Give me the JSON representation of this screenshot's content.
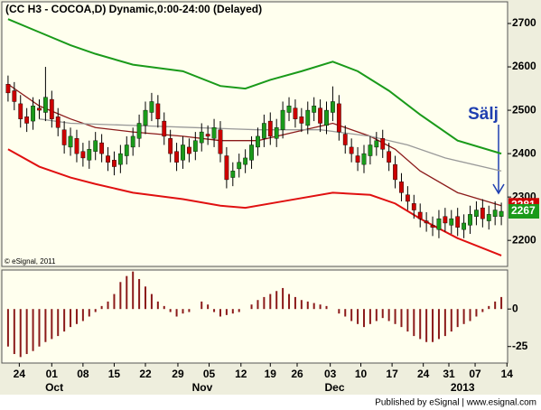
{
  "chart_data": [
    {
      "type": "candlestick",
      "title": "(CC H3 - COCOA,D) Dynamic,0:00-24:00 (Delayed)",
      "copyright": "© eSignal, 2011",
      "annotation": "Sälj",
      "xlim": [
        -1,
        80
      ],
      "ylim": [
        2140,
        2750
      ],
      "yticks": [
        2200,
        2300,
        2400,
        2500,
        2600,
        2700
      ],
      "up_color": "#1a9a1a",
      "down_color": "#cc0000",
      "open": [
        2560,
        2545,
        2515,
        2485,
        2475,
        2505,
        2495,
        2525,
        2485,
        2455,
        2415,
        2435,
        2405,
        2385,
        2405,
        2425,
        2395,
        2385,
        2375,
        2395,
        2415,
        2435,
        2465,
        2495,
        2515,
        2475,
        2435,
        2405,
        2385,
        2415,
        2405,
        2425,
        2445,
        2435,
        2455,
        2395,
        2345,
        2365,
        2375,
        2385,
        2415,
        2435,
        2475,
        2435,
        2455,
        2495,
        2505,
        2485,
        2465,
        2495,
        2505,
        2465,
        2495,
        2515,
        2445,
        2415,
        2395,
        2375,
        2395,
        2415,
        2435,
        2405,
        2375,
        2335,
        2305,
        2285,
        2265,
        2245,
        2235,
        2225,
        2255,
        2235,
        2255,
        2225,
        2235,
        2255,
        2275,
        2245,
        2255,
        2255
      ],
      "high": [
        2580,
        2565,
        2535,
        2505,
        2530,
        2525,
        2600,
        2545,
        2505,
        2475,
        2460,
        2455,
        2425,
        2430,
        2450,
        2445,
        2415,
        2405,
        2420,
        2440,
        2460,
        2490,
        2520,
        2540,
        2535,
        2495,
        2455,
        2425,
        2440,
        2435,
        2450,
        2470,
        2465,
        2480,
        2475,
        2415,
        2380,
        2400,
        2410,
        2440,
        2460,
        2490,
        2495,
        2480,
        2520,
        2530,
        2525,
        2505,
        2520,
        2530,
        2525,
        2520,
        2555,
        2535,
        2465,
        2435,
        2415,
        2420,
        2440,
        2450,
        2455,
        2425,
        2395,
        2355,
        2325,
        2305,
        2285,
        2265,
        2255,
        2270,
        2275,
        2270,
        2275,
        2260,
        2280,
        2290,
        2295,
        2280,
        2290,
        2287
      ],
      "low": [
        2520,
        2500,
        2460,
        2450,
        2455,
        2480,
        2475,
        2460,
        2440,
        2400,
        2395,
        2380,
        2370,
        2365,
        2385,
        2380,
        2360,
        2350,
        2355,
        2375,
        2395,
        2415,
        2445,
        2475,
        2460,
        2420,
        2380,
        2360,
        2365,
        2380,
        2385,
        2405,
        2420,
        2415,
        2380,
        2320,
        2325,
        2345,
        2355,
        2365,
        2395,
        2415,
        2420,
        2415,
        2435,
        2475,
        2460,
        2450,
        2445,
        2475,
        2450,
        2445,
        2475,
        2430,
        2400,
        2380,
        2360,
        2355,
        2375,
        2395,
        2390,
        2360,
        2320,
        2290,
        2270,
        2250,
        2230,
        2220,
        2210,
        2205,
        2220,
        2215,
        2210,
        2205,
        2215,
        2235,
        2230,
        2225,
        2235,
        2235
      ],
      "close": [
        2540,
        2520,
        2480,
        2470,
        2510,
        2500,
        2530,
        2480,
        2460,
        2420,
        2440,
        2400,
        2390,
        2410,
        2430,
        2400,
        2380,
        2370,
        2400,
        2420,
        2440,
        2470,
        2500,
        2520,
        2480,
        2440,
        2400,
        2380,
        2420,
        2400,
        2430,
        2450,
        2440,
        2460,
        2400,
        2340,
        2360,
        2380,
        2390,
        2420,
        2440,
        2470,
        2440,
        2460,
        2500,
        2510,
        2480,
        2470,
        2500,
        2510,
        2470,
        2500,
        2520,
        2450,
        2420,
        2400,
        2380,
        2400,
        2420,
        2430,
        2410,
        2380,
        2340,
        2310,
        2290,
        2270,
        2250,
        2240,
        2230,
        2250,
        2240,
        2250,
        2230,
        2240,
        2260,
        2270,
        2250,
        2260,
        2270,
        2267
      ],
      "series": [
        {
          "color": "#1a9a1a",
          "x": [
            0,
            5,
            10,
            14,
            20,
            28,
            34,
            38,
            42,
            47,
            52,
            56,
            61,
            66,
            72,
            79
          ],
          "values": [
            2710,
            2680,
            2650,
            2630,
            2605,
            2590,
            2556,
            2550,
            2570,
            2590,
            2612,
            2590,
            2545,
            2490,
            2430,
            2400
          ]
        },
        {
          "color": "#e01010",
          "x": [
            0,
            5,
            10,
            14,
            20,
            28,
            34,
            38,
            44,
            52,
            58,
            62,
            66,
            72,
            79
          ],
          "values": [
            2410,
            2370,
            2345,
            2330,
            2310,
            2295,
            2280,
            2275,
            2290,
            2310,
            2305,
            2285,
            2250,
            2205,
            2165
          ]
        },
        {
          "color": "#8b1a1a",
          "x": [
            0,
            5,
            10,
            14,
            20,
            28,
            34,
            40,
            46,
            52,
            58,
            62,
            66,
            72,
            79
          ],
          "values": [
            2560,
            2510,
            2480,
            2460,
            2450,
            2440,
            2430,
            2430,
            2450,
            2470,
            2440,
            2410,
            2360,
            2310,
            2280
          ]
        },
        {
          "color": "#999999",
          "x": [
            5,
            10,
            20,
            30,
            40,
            50,
            58,
            64,
            70,
            79
          ],
          "values": [
            2480,
            2470,
            2465,
            2460,
            2455,
            2455,
            2440,
            2420,
            2390,
            2360
          ]
        }
      ],
      "price_markers": [
        {
          "value": 2281,
          "color": "#cc0000"
        },
        {
          "value": 2267,
          "color": "#1a9a1a"
        }
      ]
    },
    {
      "type": "bar",
      "color": "#8b1a1a",
      "xlim": [
        -1,
        80
      ],
      "ylim": [
        -36,
        26
      ],
      "yticks": [
        -25,
        0
      ],
      "values": [
        -25,
        -30,
        -32,
        -30,
        -28,
        -25,
        -22,
        -20,
        -18,
        -15,
        -12,
        -10,
        -8,
        -5,
        -2,
        2,
        5,
        10,
        18,
        22,
        25,
        20,
        15,
        10,
        5,
        2,
        -2,
        -5,
        -3,
        -2,
        0,
        5,
        3,
        -2,
        -5,
        -4,
        -3,
        -2,
        0,
        3,
        6,
        8,
        10,
        12,
        14,
        10,
        8,
        6,
        5,
        4,
        3,
        2,
        0,
        -3,
        -5,
        -8,
        -10,
        -12,
        -10,
        -8,
        -6,
        -8,
        -10,
        -12,
        -15,
        -18,
        -20,
        -22,
        -22,
        -20,
        -18,
        -15,
        -12,
        -10,
        -8,
        -5,
        -2,
        2,
        5,
        8
      ],
      "xticks": [
        {
          "value": 1.8,
          "label": "24"
        },
        {
          "value": 7,
          "label": "01"
        },
        {
          "value": 12,
          "label": "08"
        },
        {
          "value": 17,
          "label": "15"
        },
        {
          "value": 22,
          "label": "22"
        },
        {
          "value": 27.2,
          "label": "29"
        },
        {
          "value": 32.2,
          "label": "05"
        },
        {
          "value": 37.3,
          "label": "12"
        },
        {
          "value": 42,
          "label": "19"
        },
        {
          "value": 46.3,
          "label": "26"
        },
        {
          "value": 51.6,
          "label": "03"
        },
        {
          "value": 56.5,
          "label": "10"
        },
        {
          "value": 61.5,
          "label": "17"
        },
        {
          "value": 66.5,
          "label": "24"
        },
        {
          "value": 70.6,
          "label": "31"
        },
        {
          "value": 74.8,
          "label": "07"
        },
        {
          "value": 79.9,
          "label": "14"
        }
      ],
      "month_labels": [
        {
          "value": 7.4,
          "label": "Oct"
        },
        {
          "value": 31.1,
          "label": "Nov"
        },
        {
          "value": 52.3,
          "label": "Dec"
        },
        {
          "value": 72.8,
          "label": "2013"
        }
      ]
    }
  ],
  "footer": "Published by eSignal | www.esignal.com"
}
